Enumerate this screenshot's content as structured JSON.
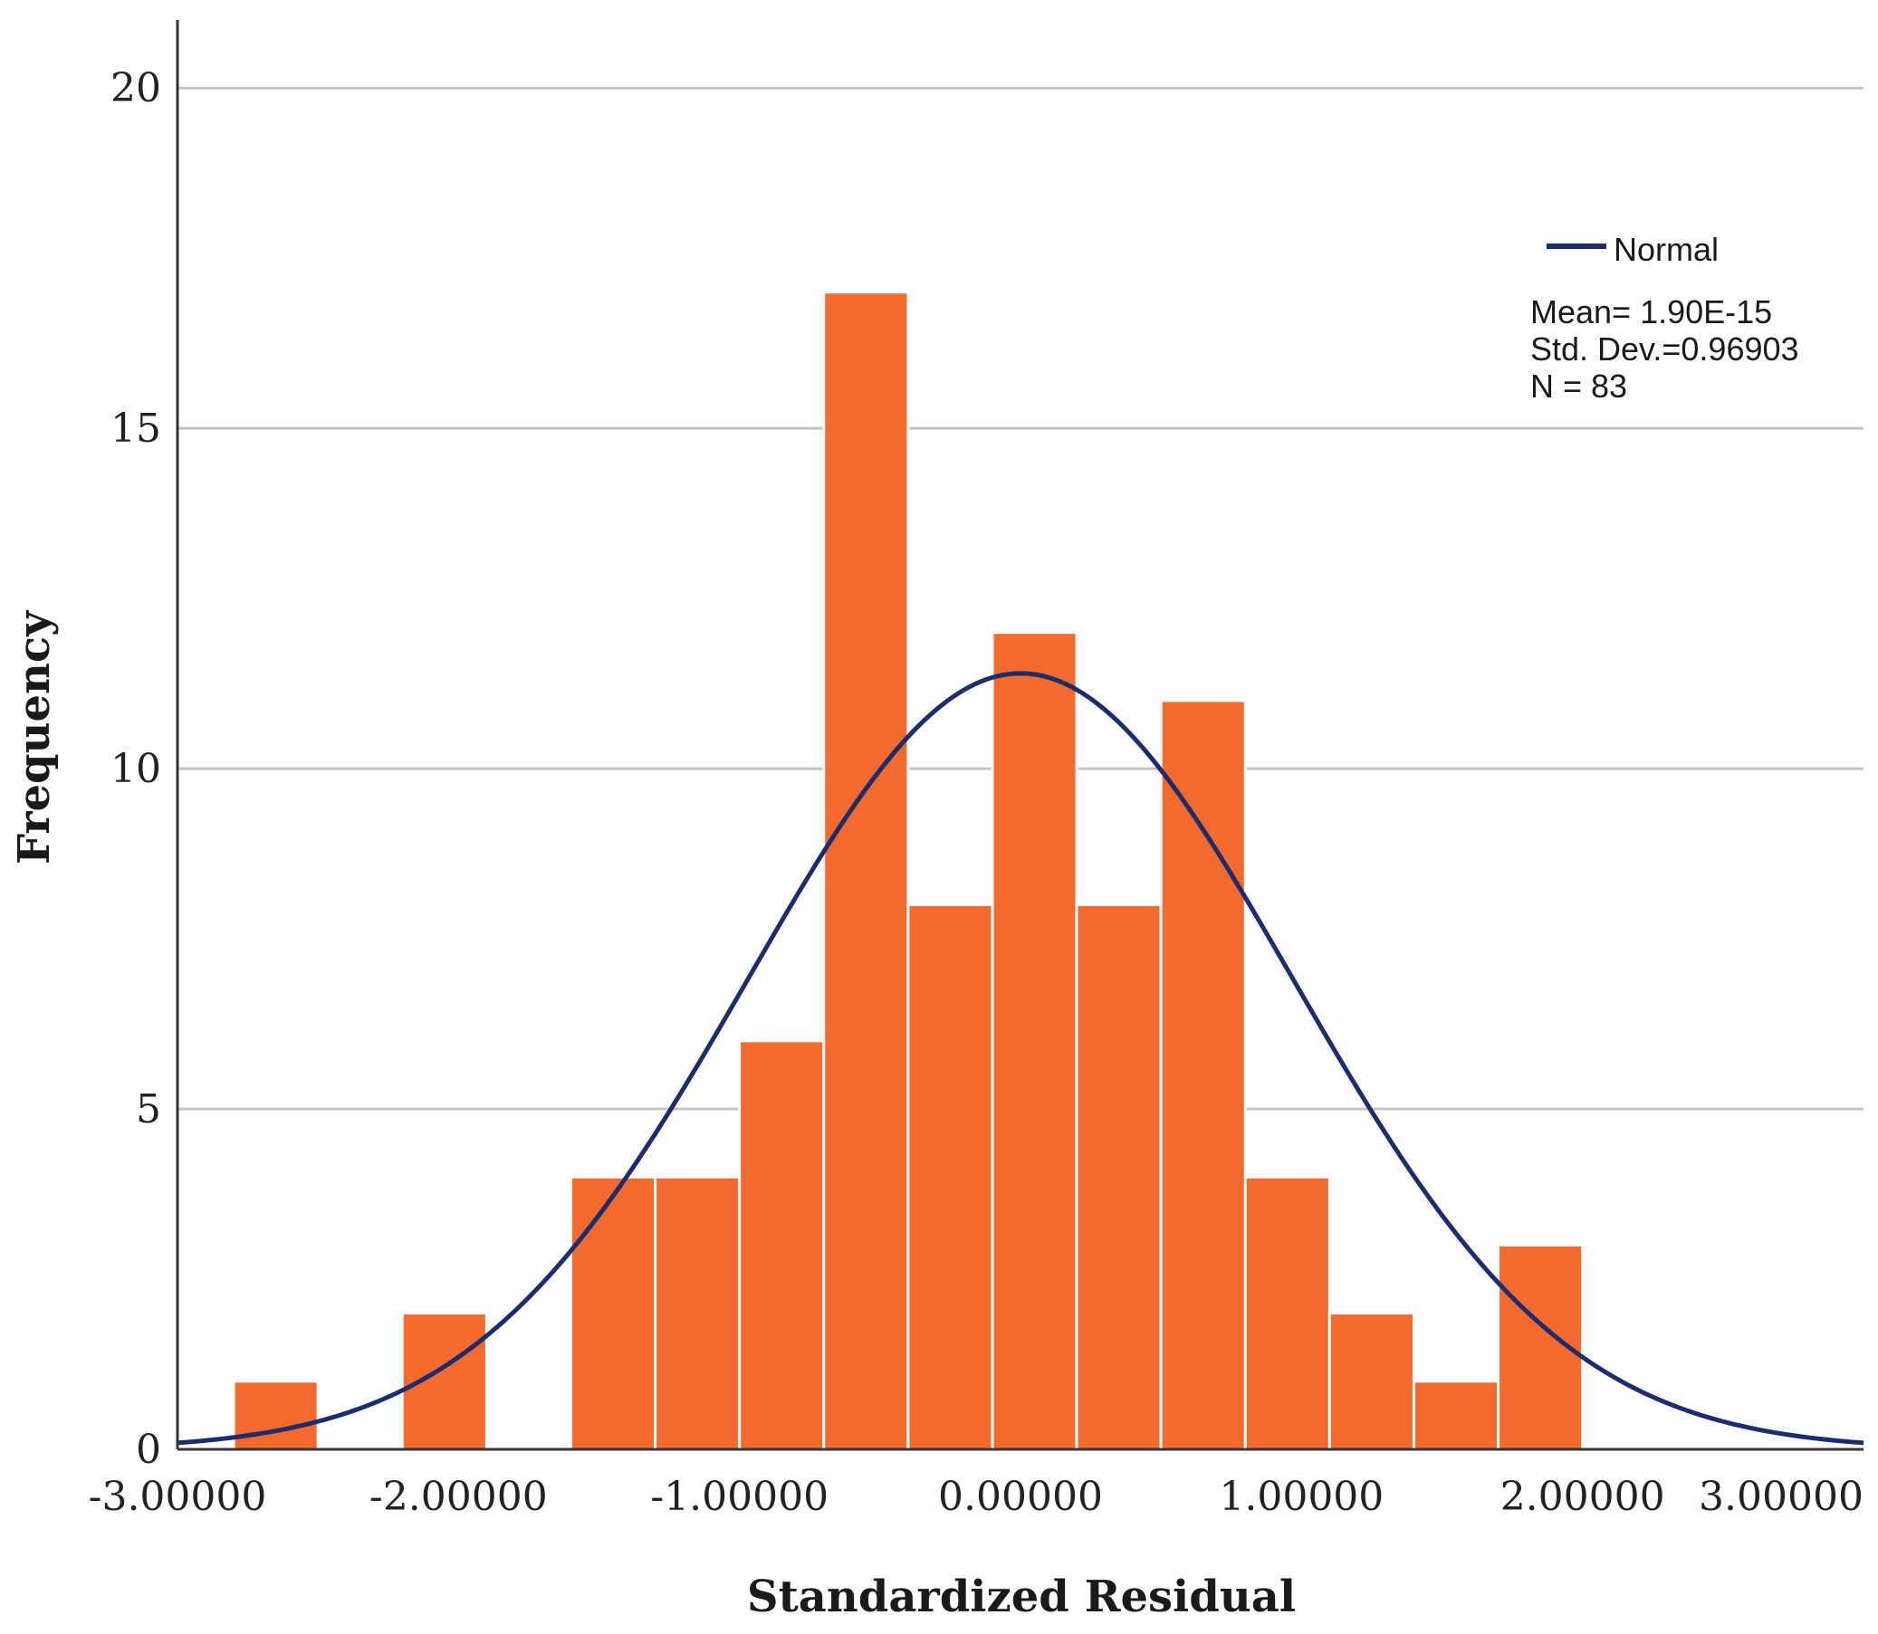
{
  "chart_data": {
    "type": "bar",
    "subtype": "histogram-with-normal-curve",
    "xlabel": "Standardized Residual",
    "ylabel": "Frequency",
    "xlim": [
      -3.0,
      3.0
    ],
    "ylim": [
      0,
      21
    ],
    "x_ticks": [
      -3,
      -2,
      -1,
      0,
      1,
      2,
      3
    ],
    "x_tick_labels": [
      "-3.00000",
      "-2.00000",
      "-1.00000",
      "0.00000",
      "1.00000",
      "2.00000",
      "3.00000"
    ],
    "y_ticks": [
      0,
      5,
      10,
      15,
      20
    ],
    "y_tick_labels": [
      "0",
      "5",
      "10",
      "15",
      "20"
    ],
    "grid": true,
    "bar_color": "#f26a2e",
    "curve_color": "#1c2d6e",
    "bin_width": 0.3,
    "bins": [
      {
        "x_start": -2.8,
        "x_end": -2.5,
        "value": 1
      },
      {
        "x_start": -2.5,
        "x_end": -2.2,
        "value": 0
      },
      {
        "x_start": -2.2,
        "x_end": -1.9,
        "value": 2
      },
      {
        "x_start": -1.9,
        "x_end": -1.6,
        "value": 0
      },
      {
        "x_start": -1.6,
        "x_end": -1.3,
        "value": 4
      },
      {
        "x_start": -1.3,
        "x_end": -1.0,
        "value": 4
      },
      {
        "x_start": -1.0,
        "x_end": -0.7,
        "value": 6
      },
      {
        "x_start": -0.7,
        "x_end": -0.4,
        "value": 17
      },
      {
        "x_start": -0.4,
        "x_end": -0.1,
        "value": 8
      },
      {
        "x_start": -0.1,
        "x_end": 0.2,
        "value": 12
      },
      {
        "x_start": 0.2,
        "x_end": 0.5,
        "value": 8
      },
      {
        "x_start": 0.5,
        "x_end": 0.8,
        "value": 11
      },
      {
        "x_start": 0.8,
        "x_end": 1.1,
        "value": 4
      },
      {
        "x_start": 1.1,
        "x_end": 1.4,
        "value": 2
      },
      {
        "x_start": 1.4,
        "x_end": 1.7,
        "value": 1
      },
      {
        "x_start": 1.7,
        "x_end": 2.0,
        "value": 3
      }
    ],
    "normal_curve": {
      "mean": 0.0,
      "std_dev": 0.96903,
      "n": 83,
      "peak": 11.4
    },
    "legend": {
      "position": "top-right",
      "series_label": "Normal",
      "stats": [
        "Mean= 1.90E-15",
        "Std. Dev.=0.96903",
        "N = 83"
      ]
    }
  }
}
